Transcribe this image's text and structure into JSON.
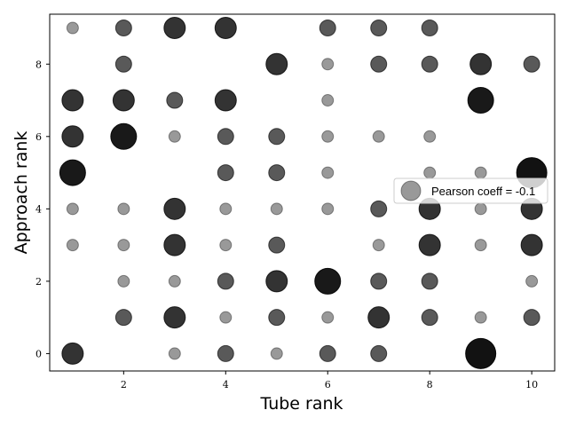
{
  "chart_data": {
    "type": "scatter",
    "xlabel": "Tube rank",
    "ylabel": "Approach rank",
    "xlim": [
      0.55,
      10.45
    ],
    "ylim": [
      -0.48,
      9.38
    ],
    "xticks": [
      2,
      4,
      6,
      8,
      10
    ],
    "yticks": [
      0,
      2,
      4,
      6,
      8
    ],
    "grid": false,
    "legend": {
      "label": "Pearson coeff = -0.1",
      "position": "right"
    },
    "marker_color": "#000000",
    "points": [
      {
        "x": 1,
        "y": 9,
        "size": 1
      },
      {
        "x": 2,
        "y": 9,
        "size": 2
      },
      {
        "x": 3,
        "y": 9,
        "size": 3
      },
      {
        "x": 4,
        "y": 9,
        "size": 3
      },
      {
        "x": 6,
        "y": 9,
        "size": 2
      },
      {
        "x": 7,
        "y": 9,
        "size": 2
      },
      {
        "x": 8,
        "y": 9,
        "size": 2
      },
      {
        "x": 2,
        "y": 8,
        "size": 2
      },
      {
        "x": 5,
        "y": 8,
        "size": 3
      },
      {
        "x": 6,
        "y": 8,
        "size": 1
      },
      {
        "x": 7,
        "y": 8,
        "size": 2
      },
      {
        "x": 8,
        "y": 8,
        "size": 2
      },
      {
        "x": 9,
        "y": 8,
        "size": 3
      },
      {
        "x": 10,
        "y": 8,
        "size": 2
      },
      {
        "x": 1,
        "y": 7,
        "size": 3
      },
      {
        "x": 2,
        "y": 7,
        "size": 3
      },
      {
        "x": 3,
        "y": 7,
        "size": 2
      },
      {
        "x": 4,
        "y": 7,
        "size": 3
      },
      {
        "x": 6,
        "y": 7,
        "size": 1
      },
      {
        "x": 9,
        "y": 7,
        "size": 4
      },
      {
        "x": 1,
        "y": 6,
        "size": 3
      },
      {
        "x": 2,
        "y": 6,
        "size": 4
      },
      {
        "x": 3,
        "y": 6,
        "size": 1
      },
      {
        "x": 4,
        "y": 6,
        "size": 2
      },
      {
        "x": 5,
        "y": 6,
        "size": 2
      },
      {
        "x": 6,
        "y": 6,
        "size": 1
      },
      {
        "x": 7,
        "y": 6,
        "size": 1
      },
      {
        "x": 8,
        "y": 6,
        "size": 1
      },
      {
        "x": 1,
        "y": 5,
        "size": 4
      },
      {
        "x": 4,
        "y": 5,
        "size": 2
      },
      {
        "x": 5,
        "y": 5,
        "size": 2
      },
      {
        "x": 6,
        "y": 5,
        "size": 1
      },
      {
        "x": 8,
        "y": 5,
        "size": 1
      },
      {
        "x": 9,
        "y": 5,
        "size": 1
      },
      {
        "x": 10,
        "y": 5,
        "size": 5
      },
      {
        "x": 1,
        "y": 4,
        "size": 1
      },
      {
        "x": 2,
        "y": 4,
        "size": 1
      },
      {
        "x": 3,
        "y": 4,
        "size": 3
      },
      {
        "x": 4,
        "y": 4,
        "size": 1
      },
      {
        "x": 5,
        "y": 4,
        "size": 1
      },
      {
        "x": 6,
        "y": 4,
        "size": 1
      },
      {
        "x": 7,
        "y": 4,
        "size": 2
      },
      {
        "x": 8,
        "y": 4,
        "size": 3
      },
      {
        "x": 9,
        "y": 4,
        "size": 1
      },
      {
        "x": 10,
        "y": 4,
        "size": 3
      },
      {
        "x": 1,
        "y": 3,
        "size": 1
      },
      {
        "x": 2,
        "y": 3,
        "size": 1
      },
      {
        "x": 3,
        "y": 3,
        "size": 3
      },
      {
        "x": 4,
        "y": 3,
        "size": 1
      },
      {
        "x": 5,
        "y": 3,
        "size": 2
      },
      {
        "x": 7,
        "y": 3,
        "size": 1
      },
      {
        "x": 8,
        "y": 3,
        "size": 3
      },
      {
        "x": 9,
        "y": 3,
        "size": 1
      },
      {
        "x": 10,
        "y": 3,
        "size": 3
      },
      {
        "x": 2,
        "y": 2,
        "size": 1
      },
      {
        "x": 3,
        "y": 2,
        "size": 1
      },
      {
        "x": 4,
        "y": 2,
        "size": 2
      },
      {
        "x": 5,
        "y": 2,
        "size": 3
      },
      {
        "x": 6,
        "y": 2,
        "size": 4
      },
      {
        "x": 7,
        "y": 2,
        "size": 2
      },
      {
        "x": 8,
        "y": 2,
        "size": 2
      },
      {
        "x": 10,
        "y": 2,
        "size": 1
      },
      {
        "x": 2,
        "y": 1,
        "size": 2
      },
      {
        "x": 3,
        "y": 1,
        "size": 3
      },
      {
        "x": 4,
        "y": 1,
        "size": 1
      },
      {
        "x": 5,
        "y": 1,
        "size": 2
      },
      {
        "x": 6,
        "y": 1,
        "size": 1
      },
      {
        "x": 7,
        "y": 1,
        "size": 3
      },
      {
        "x": 8,
        "y": 1,
        "size": 2
      },
      {
        "x": 9,
        "y": 1,
        "size": 1
      },
      {
        "x": 10,
        "y": 1,
        "size": 2
      },
      {
        "x": 1,
        "y": 0,
        "size": 3
      },
      {
        "x": 3,
        "y": 0,
        "size": 1
      },
      {
        "x": 4,
        "y": 0,
        "size": 2
      },
      {
        "x": 5,
        "y": 0,
        "size": 1
      },
      {
        "x": 6,
        "y": 0,
        "size": 2
      },
      {
        "x": 7,
        "y": 0,
        "size": 2
      },
      {
        "x": 9,
        "y": 0,
        "size": 5
      }
    ]
  }
}
